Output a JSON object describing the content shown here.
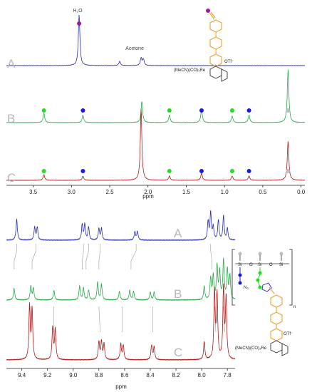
{
  "chart_data": [
    {
      "type": "line",
      "xlabel": "ppm",
      "x_reversed": true,
      "xlim": [
        3.85,
        -0.05
      ],
      "xticks": [
        "3.5",
        "3.0",
        "2.5",
        "2.0",
        "1.5",
        "1.0",
        "0.5",
        "0.0"
      ],
      "series": [
        {
          "name": "A",
          "color": "#2a2ea8",
          "peaks": [
            [
              2.9,
              0.95
            ],
            [
              2.37,
              0.08
            ],
            [
              2.09,
              0.14
            ],
            [
              2.06,
              0.12
            ]
          ]
        },
        {
          "name": "B",
          "color": "#2aa84a",
          "peaks": [
            [
              3.36,
              0.18
            ],
            [
              2.85,
              0.14
            ],
            [
              2.08,
              0.4
            ],
            [
              1.72,
              0.14
            ],
            [
              1.3,
              0.25
            ],
            [
              0.9,
              0.12
            ],
            [
              0.68,
              0.14
            ],
            [
              0.17,
              1.0
            ]
          ]
        },
        {
          "name": "C",
          "color": "#b01818",
          "peaks": [
            [
              3.36,
              0.08
            ],
            [
              2.85,
              0.06
            ],
            [
              2.09,
              1.0
            ],
            [
              1.72,
              0.06
            ],
            [
              1.3,
              0.1
            ],
            [
              0.9,
              0.06
            ],
            [
              0.68,
              0.06
            ],
            [
              0.17,
              0.55
            ]
          ]
        }
      ],
      "annotations": {
        "water": "H₂O",
        "acetone": "Acetone",
        "otf": "OTf⁻",
        "re": "(MeCN)(CO)₃Re"
      },
      "dots": [
        {
          "series": "B",
          "x": 3.36,
          "color": "#22dd22"
        },
        {
          "series": "B",
          "x": 2.85,
          "color": "#1a1adc"
        },
        {
          "series": "B",
          "x": 1.72,
          "color": "#22dd22"
        },
        {
          "series": "B",
          "x": 1.3,
          "color": "#1a1adc"
        },
        {
          "series": "B",
          "x": 0.9,
          "color": "#22dd22"
        },
        {
          "series": "B",
          "x": 0.68,
          "color": "#1a1adc"
        },
        {
          "series": "B",
          "x": 0.17,
          "color": "#bdbdbd"
        },
        {
          "series": "C",
          "x": 3.36,
          "color": "#22dd22"
        },
        {
          "series": "C",
          "x": 2.85,
          "color": "#1a1adc"
        },
        {
          "series": "C",
          "x": 1.72,
          "color": "#22dd22"
        },
        {
          "series": "C",
          "x": 1.3,
          "color": "#1a1adc"
        },
        {
          "series": "C",
          "x": 0.9,
          "color": "#22dd22"
        },
        {
          "series": "C",
          "x": 0.68,
          "color": "#1a1adc"
        },
        {
          "series": "C",
          "x": 0.17,
          "color": "#bdbdbd"
        }
      ]
    },
    {
      "type": "line",
      "xlabel": "ppm",
      "x_reversed": true,
      "xlim": [
        9.52,
        7.74
      ],
      "xticks": [
        "9.4",
        "9.2",
        "9.0",
        "8.8",
        "8.6",
        "8.4",
        "8.2",
        "8.0",
        "7.8"
      ],
      "series": [
        {
          "name": "A",
          "color": "#2a2ea8",
          "peaks": [
            [
              9.44,
              0.75
            ],
            [
              9.3,
              0.45
            ],
            [
              9.28,
              0.45
            ],
            [
              8.93,
              0.55
            ],
            [
              8.91,
              0.55
            ],
            [
              8.88,
              0.45
            ],
            [
              8.8,
              0.4
            ],
            [
              8.78,
              0.4
            ],
            [
              8.52,
              0.3
            ],
            [
              8.5,
              0.3
            ],
            [
              7.95,
              0.65
            ],
            [
              7.93,
              0.95
            ],
            [
              7.91,
              0.45
            ],
            [
              7.87,
              0.7
            ],
            [
              7.83,
              0.85
            ],
            [
              7.8,
              0.4
            ]
          ]
        },
        {
          "name": "B",
          "color": "#2aa84a",
          "peaks": [
            [
              9.46,
              0.3
            ],
            [
              9.33,
              0.35
            ],
            [
              9.31,
              0.3
            ],
            [
              9.15,
              0.25
            ],
            [
              8.95,
              0.35
            ],
            [
              8.92,
              0.3
            ],
            [
              8.88,
              0.25
            ],
            [
              8.81,
              0.45
            ],
            [
              8.78,
              0.4
            ],
            [
              8.64,
              0.22
            ],
            [
              8.56,
              0.25
            ],
            [
              8.53,
              0.22
            ],
            [
              8.4,
              0.2
            ],
            [
              8.37,
              0.2
            ],
            [
              7.98,
              0.35
            ],
            [
              7.93,
              0.55
            ],
            [
              7.91,
              0.6
            ],
            [
              7.88,
              0.85
            ],
            [
              7.86,
              0.7
            ],
            [
              7.83,
              1.0
            ],
            [
              7.8,
              0.75
            ],
            [
              7.78,
              0.6
            ]
          ]
        },
        {
          "name": "C",
          "color": "#b01818",
          "peaks": [
            [
              9.34,
              0.75
            ],
            [
              9.32,
              0.7
            ],
            [
              9.16,
              0.45
            ],
            [
              9.14,
              0.42
            ],
            [
              8.8,
              0.25
            ],
            [
              8.78,
              0.25
            ],
            [
              8.76,
              0.22
            ],
            [
              8.63,
              0.22
            ],
            [
              8.61,
              0.2
            ],
            [
              8.39,
              0.2
            ],
            [
              8.37,
              0.18
            ],
            [
              7.98,
              0.25
            ],
            [
              7.9,
              0.95
            ],
            [
              7.88,
              0.9
            ],
            [
              7.83,
              1.0
            ],
            [
              7.81,
              0.85
            ]
          ]
        }
      ],
      "annotations": {
        "otf": "OTf⁻",
        "re": "(MeCN)(CO)₃Re",
        "n3": "N₃",
        "si": "Si",
        "o": "O",
        "n": "n"
      }
    }
  ]
}
